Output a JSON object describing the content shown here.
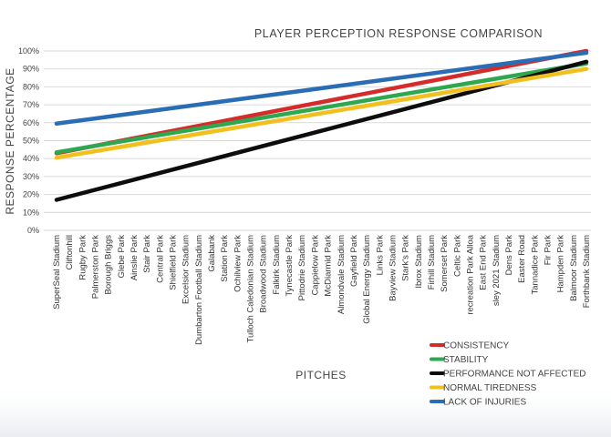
{
  "chart_data": {
    "type": "line",
    "title": "PLAYER PERCEPTION RESPONSE COMPARISON",
    "xlabel": "PITCHES",
    "ylabel": "RESPONSE PERCENTAGE",
    "ylim": [
      0,
      100
    ],
    "yticks": [
      "0%",
      "10%",
      "20%",
      "30%",
      "40%",
      "50%",
      "60%",
      "70%",
      "80%",
      "90%",
      "100%"
    ],
    "grid": true,
    "legend_position": "bottom-right",
    "categories": [
      "SuperSeal Stadium",
      "Cliftonhill",
      "Rugby Park",
      "Palmerston Park",
      "Borough Briggs",
      "Glebe Park",
      "Ainslie Park",
      "Stair Park",
      "Central Park",
      "Shielfield Park",
      "Excelsior Stadium",
      "Dumbarton Football Stadium",
      "Galabank",
      "Station Park",
      "Ochilview Park",
      "Tulloch Caledonian Stadium",
      "Broadwood Stadium",
      "Falkirk Stadium",
      "Tynecastle Park",
      "Pittodrie Stadium",
      "Cappielow Park",
      "McDiarmid Park",
      "Almondvale Stadium",
      "Gayfield Park",
      "Global Energy Stadium",
      "Links Park",
      "Bayview Stadium",
      "Stark's Park",
      "Ibrox Stadium",
      "Firhill Stadium",
      "Somerset Park",
      "Celtic Park",
      "recreation Park Alloa",
      "East End Park",
      "sley 2021 Stadium",
      "Dens Park",
      "Easter Road",
      "Tannadice Park",
      "Fir Park",
      "Hampden Park",
      "Balmoor Stadium",
      "Forthbank Stadium"
    ],
    "series": [
      {
        "name": "CONSISTENCY",
        "color": "#d62b2b",
        "start": 43,
        "end": 100
      },
      {
        "name": "STABILITY",
        "color": "#2ea84f",
        "start": 43.5,
        "end": 93
      },
      {
        "name": "PERFORMANCE NOT AFFECTED",
        "color": "#0d0d0d",
        "start": 17,
        "end": 94
      },
      {
        "name": "NORMAL TIREDNESS",
        "color": "#f2c01e",
        "start": 40.5,
        "end": 90
      },
      {
        "name": "LACK OF INJURIES",
        "color": "#2a6db5",
        "start": 59.5,
        "end": 99
      }
    ]
  }
}
